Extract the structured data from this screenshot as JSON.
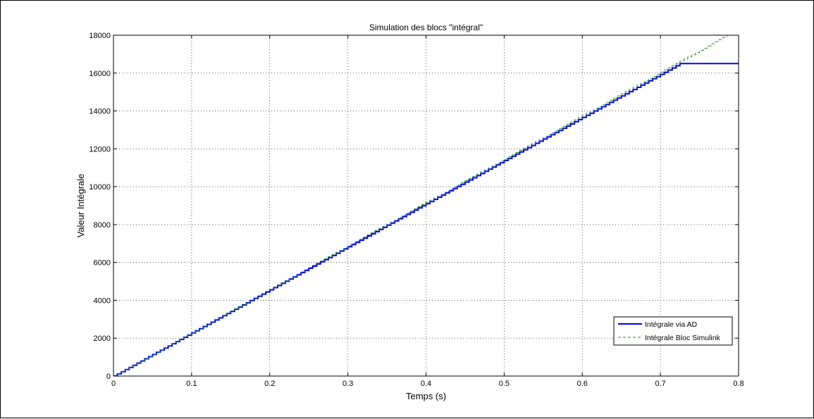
{
  "chart_data": {
    "type": "line",
    "title": "Simulation des blocs \"intégral\"",
    "xlabel": "Temps (s)",
    "ylabel": "Valeur Intégrale",
    "xlim": [
      0,
      0.8
    ],
    "ylim": [
      0,
      18000
    ],
    "x_ticks": [
      "0",
      "0.1",
      "0.2",
      "0.3",
      "0.4",
      "0.5",
      "0.6",
      "0.7",
      "0.8"
    ],
    "y_ticks": [
      "0",
      "2000",
      "4000",
      "6000",
      "8000",
      "10000",
      "12000",
      "14000",
      "16000",
      "18000"
    ],
    "grid": true,
    "legend_position": "bottom-right",
    "series": [
      {
        "name": "Intégrale via AD",
        "color": "#0000ff",
        "style": "solid-stepped",
        "x": [
          0,
          0.725,
          0.8
        ],
        "y": [
          0,
          16500,
          16500
        ]
      },
      {
        "name": "Intégrale Bloc Simulink",
        "color": "#228b22",
        "style": "dashed-stepped",
        "x": [
          0,
          0.785
        ],
        "y": [
          0,
          18000
        ]
      }
    ]
  }
}
